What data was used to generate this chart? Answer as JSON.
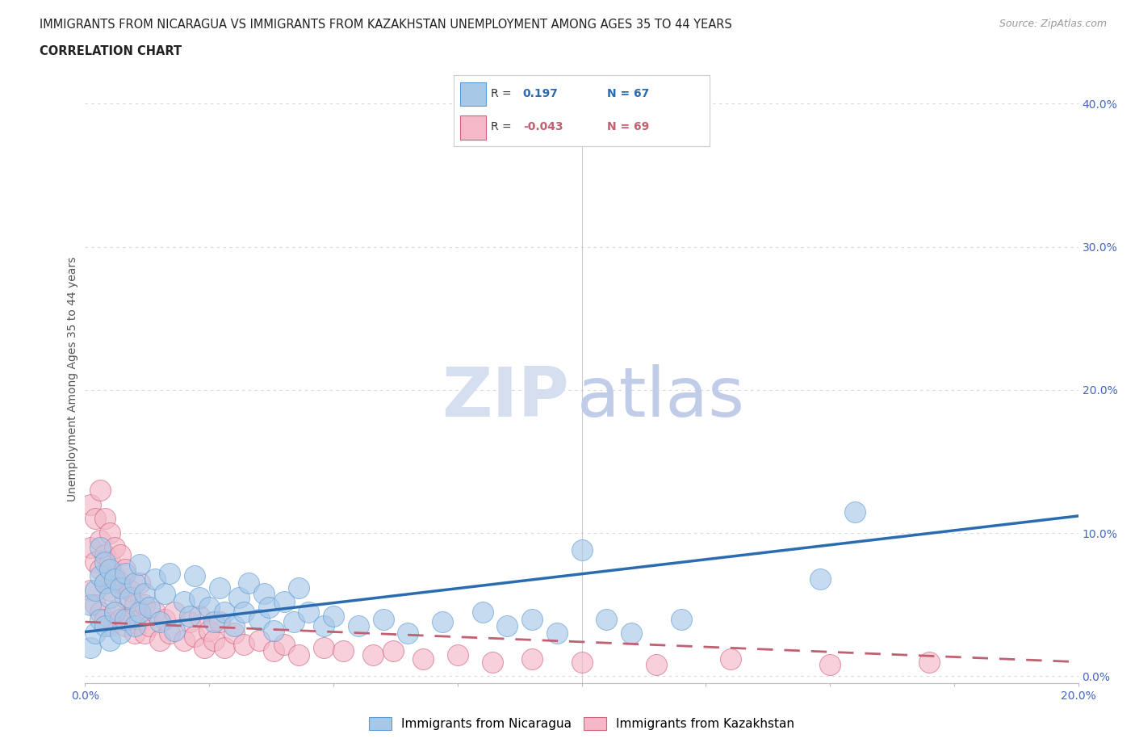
{
  "title_line1": "IMMIGRANTS FROM NICARAGUA VS IMMIGRANTS FROM KAZAKHSTAN UNEMPLOYMENT AMONG AGES 35 TO 44 YEARS",
  "title_line2": "CORRELATION CHART",
  "source_text": "Source: ZipAtlas.com",
  "ylabel": "Unemployment Among Ages 35 to 44 years",
  "xlim": [
    0.0,
    0.2
  ],
  "ylim": [
    -0.005,
    0.42
  ],
  "xticks": [
    0.0,
    0.025,
    0.05,
    0.075,
    0.1,
    0.125,
    0.15,
    0.175,
    0.2
  ],
  "xtick_labels": [
    "0.0%",
    "",
    "",
    "",
    "",
    "",
    "",
    "",
    "20.0%"
  ],
  "yticks": [
    0.0,
    0.1,
    0.2,
    0.3,
    0.4
  ],
  "ytick_labels_right": [
    "0.0%",
    "10.0%",
    "20.0%",
    "30.0%",
    "40.0%"
  ],
  "nicaragua_R": 0.197,
  "nicaragua_N": 67,
  "kazakhstan_R": -0.043,
  "kazakhstan_N": 69,
  "blue_color": "#a8c8e8",
  "blue_edge_color": "#5b9bd5",
  "pink_color": "#f4b8c8",
  "pink_edge_color": "#d4607a",
  "blue_line_color": "#2b6cb0",
  "pink_line_color": "#c06070",
  "watermark_zip_color": "#d5dff0",
  "watermark_atlas_color": "#c0cce8",
  "background_color": "#ffffff",
  "grid_color": "#d8d8d8",
  "title_color": "#222222",
  "axis_tick_color": "#4466bb",
  "ylabel_color": "#555555",
  "legend_border_color": "#cccccc",
  "source_color": "#999999",
  "nic_trend_start_y": 0.031,
  "nic_trend_end_y": 0.112,
  "kaz_trend_start_y": 0.038,
  "kaz_trend_end_y": 0.01,
  "nicaragua_x": [
    0.001,
    0.001,
    0.002,
    0.002,
    0.003,
    0.003,
    0.003,
    0.004,
    0.004,
    0.004,
    0.005,
    0.005,
    0.005,
    0.006,
    0.006,
    0.007,
    0.007,
    0.008,
    0.008,
    0.009,
    0.01,
    0.01,
    0.011,
    0.011,
    0.012,
    0.013,
    0.014,
    0.015,
    0.016,
    0.017,
    0.018,
    0.02,
    0.021,
    0.022,
    0.023,
    0.025,
    0.026,
    0.027,
    0.028,
    0.03,
    0.031,
    0.032,
    0.033,
    0.035,
    0.036,
    0.037,
    0.038,
    0.04,
    0.042,
    0.043,
    0.045,
    0.048,
    0.05,
    0.055,
    0.06,
    0.065,
    0.072,
    0.08,
    0.085,
    0.09,
    0.095,
    0.1,
    0.105,
    0.11,
    0.12,
    0.148,
    0.155
  ],
  "nicaragua_y": [
    0.02,
    0.05,
    0.03,
    0.06,
    0.04,
    0.07,
    0.09,
    0.035,
    0.065,
    0.08,
    0.025,
    0.055,
    0.075,
    0.045,
    0.068,
    0.03,
    0.062,
    0.04,
    0.072,
    0.055,
    0.035,
    0.065,
    0.045,
    0.078,
    0.058,
    0.048,
    0.068,
    0.038,
    0.058,
    0.072,
    0.032,
    0.052,
    0.042,
    0.07,
    0.055,
    0.048,
    0.038,
    0.062,
    0.045,
    0.035,
    0.055,
    0.045,
    0.065,
    0.04,
    0.058,
    0.048,
    0.032,
    0.052,
    0.038,
    0.062,
    0.045,
    0.035,
    0.042,
    0.035,
    0.04,
    0.03,
    0.038,
    0.045,
    0.035,
    0.04,
    0.03,
    0.088,
    0.04,
    0.03,
    0.04,
    0.068,
    0.115
  ],
  "kazakhstan_x": [
    0.001,
    0.001,
    0.001,
    0.002,
    0.002,
    0.002,
    0.003,
    0.003,
    0.003,
    0.003,
    0.004,
    0.004,
    0.004,
    0.004,
    0.005,
    0.005,
    0.005,
    0.005,
    0.006,
    0.006,
    0.006,
    0.007,
    0.007,
    0.007,
    0.008,
    0.008,
    0.008,
    0.009,
    0.009,
    0.01,
    0.01,
    0.011,
    0.011,
    0.012,
    0.012,
    0.013,
    0.014,
    0.015,
    0.016,
    0.017,
    0.018,
    0.02,
    0.021,
    0.022,
    0.023,
    0.024,
    0.025,
    0.026,
    0.027,
    0.028,
    0.03,
    0.032,
    0.035,
    0.038,
    0.04,
    0.043,
    0.048,
    0.052,
    0.058,
    0.062,
    0.068,
    0.075,
    0.082,
    0.09,
    0.1,
    0.115,
    0.13,
    0.15,
    0.17
  ],
  "kazakhstan_y": [
    0.06,
    0.09,
    0.12,
    0.05,
    0.08,
    0.11,
    0.045,
    0.075,
    0.095,
    0.13,
    0.04,
    0.065,
    0.085,
    0.11,
    0.035,
    0.06,
    0.08,
    0.1,
    0.045,
    0.07,
    0.09,
    0.04,
    0.065,
    0.085,
    0.035,
    0.055,
    0.075,
    0.04,
    0.06,
    0.03,
    0.05,
    0.04,
    0.065,
    0.03,
    0.05,
    0.035,
    0.045,
    0.025,
    0.04,
    0.03,
    0.045,
    0.025,
    0.038,
    0.028,
    0.042,
    0.02,
    0.032,
    0.025,
    0.038,
    0.02,
    0.03,
    0.022,
    0.025,
    0.018,
    0.022,
    0.015,
    0.02,
    0.018,
    0.015,
    0.018,
    0.012,
    0.015,
    0.01,
    0.012,
    0.01,
    0.008,
    0.012,
    0.008,
    0.01
  ]
}
